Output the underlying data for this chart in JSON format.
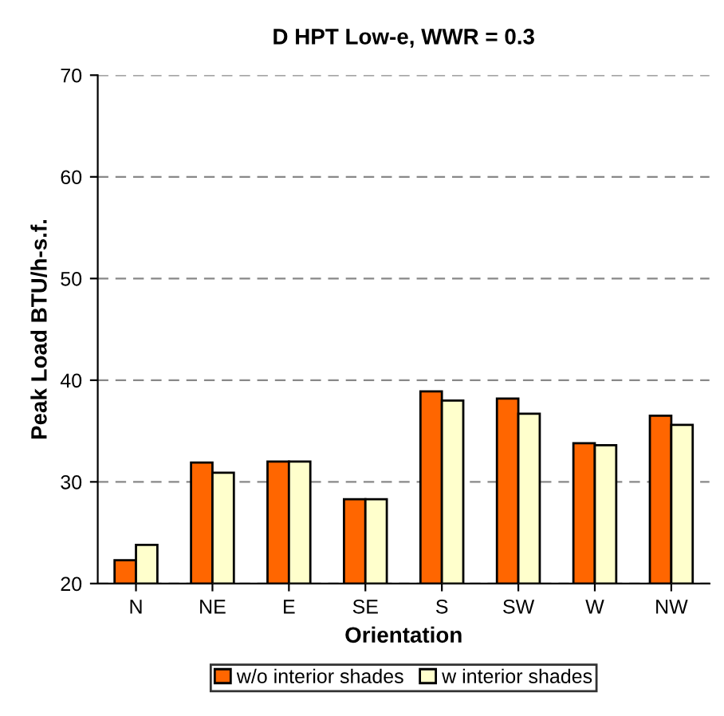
{
  "chart_data": {
    "type": "bar",
    "title": "D HPT Low-e, WWR = 0.3",
    "xlabel": "Orientation",
    "ylabel": "Peak Load BTU/h-s.f.",
    "categories": [
      "N",
      "NE",
      "E",
      "SE",
      "S",
      "SW",
      "W",
      "NW"
    ],
    "series": [
      {
        "name": "w/o interior shades",
        "color": "#ff6600",
        "values": [
          22.3,
          31.9,
          32.0,
          28.3,
          38.9,
          38.2,
          33.8,
          36.5
        ]
      },
      {
        "name": "w interior shades",
        "color": "#ffffcc",
        "values": [
          23.8,
          30.9,
          32.0,
          28.3,
          38.0,
          36.7,
          33.6,
          35.6
        ]
      }
    ],
    "ylim": [
      20,
      70
    ],
    "yticks": [
      20,
      30,
      40,
      50,
      60,
      70
    ],
    "grid": "y",
    "legend": "bottom"
  }
}
